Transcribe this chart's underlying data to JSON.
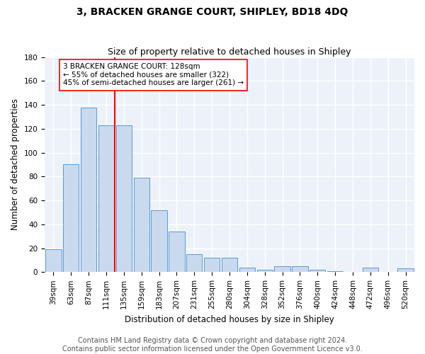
{
  "title": "3, BRACKEN GRANGE COURT, SHIPLEY, BD18 4DQ",
  "subtitle": "Size of property relative to detached houses in Shipley",
  "xlabel": "Distribution of detached houses by size in Shipley",
  "ylabel": "Number of detached properties",
  "categories": [
    "39sqm",
    "63sqm",
    "87sqm",
    "111sqm",
    "135sqm",
    "159sqm",
    "183sqm",
    "207sqm",
    "231sqm",
    "255sqm",
    "280sqm",
    "304sqm",
    "328sqm",
    "352sqm",
    "376sqm",
    "400sqm",
    "424sqm",
    "448sqm",
    "472sqm",
    "496sqm",
    "520sqm"
  ],
  "values": [
    19,
    90,
    138,
    123,
    123,
    79,
    52,
    34,
    15,
    12,
    12,
    4,
    2,
    5,
    5,
    2,
    1,
    0,
    4,
    0,
    3
  ],
  "bar_color": "#c9d9ee",
  "bar_edge_color": "#5b9bd5",
  "vline_color": "red",
  "annotation_text": "3 BRACKEN GRANGE COURT: 128sqm\n← 55% of detached houses are smaller (322)\n45% of semi-detached houses are larger (261) →",
  "annotation_box_color": "white",
  "annotation_box_edge_color": "red",
  "ylim": [
    0,
    180
  ],
  "yticks": [
    0,
    20,
    40,
    60,
    80,
    100,
    120,
    140,
    160,
    180
  ],
  "footer_line1": "Contains HM Land Registry data © Crown copyright and database right 2024.",
  "footer_line2": "Contains public sector information licensed under the Open Government Licence v3.0.",
  "background_color": "#edf2fa",
  "grid_color": "white",
  "title_fontsize": 10,
  "subtitle_fontsize": 9,
  "axis_label_fontsize": 8.5,
  "tick_fontsize": 7.5,
  "annotation_fontsize": 7.5,
  "footer_fontsize": 7
}
